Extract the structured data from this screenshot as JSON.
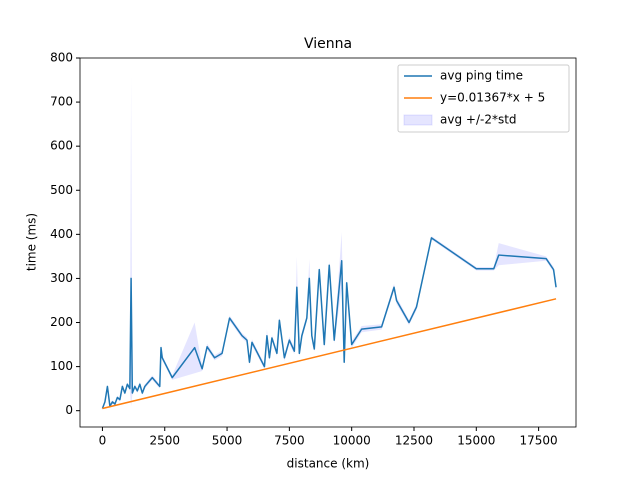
{
  "chart_data": {
    "type": "line",
    "title": "Vienna",
    "x_label": "distance (km)",
    "y_label": "time (ms)",
    "xlim": [
      -900,
      19000
    ],
    "ylim": [
      -37,
      800
    ],
    "xticks": [
      0,
      2500,
      5000,
      7500,
      10000,
      12500,
      15000,
      17500
    ],
    "yticks": [
      0,
      100,
      200,
      300,
      400,
      500,
      600,
      700,
      800
    ],
    "legend": "upper right",
    "series": [
      {
        "name": "avg ping time",
        "color": "#1f77b4",
        "x": [
          0,
          100,
          200,
          300,
          400,
          500,
          600,
          700,
          800,
          900,
          1000,
          1100,
          1150,
          1200,
          1300,
          1400,
          1500,
          1600,
          1700,
          2000,
          2300,
          2350,
          2400,
          2800,
          3700,
          4000,
          4200,
          4500,
          4800,
          5100,
          5600,
          5800,
          5900,
          6000,
          6500,
          6600,
          6700,
          6800,
          7000,
          7100,
          7300,
          7500,
          7700,
          7800,
          7900,
          8000,
          8200,
          8300,
          8400,
          8500,
          8700,
          8900,
          9100,
          9300,
          9600,
          9700,
          9800,
          10000,
          10400,
          11200,
          11700,
          11800,
          12300,
          12600,
          13200,
          15000,
          15700,
          15900,
          17800,
          18100,
          18200
        ],
        "values": [
          5,
          20,
          55,
          10,
          20,
          15,
          30,
          25,
          55,
          40,
          60,
          50,
          300,
          40,
          55,
          45,
          60,
          40,
          55,
          75,
          55,
          143,
          120,
          75,
          143,
          95,
          145,
          120,
          130,
          210,
          170,
          160,
          110,
          155,
          100,
          170,
          120,
          165,
          130,
          205,
          120,
          160,
          135,
          280,
          130,
          170,
          210,
          300,
          170,
          140,
          320,
          150,
          330,
          160,
          340,
          110,
          290,
          150,
          185,
          190,
          280,
          250,
          200,
          235,
          392,
          322,
          322,
          353,
          345,
          320,
          280
        ]
      },
      {
        "name": "y=0.01367*x + 5",
        "color": "#ff7f0e",
        "x": [
          0,
          18200
        ],
        "values": [
          5,
          253.8
        ]
      }
    ],
    "band": {
      "name": "avg +/-2*std",
      "color": "#0000ff",
      "upper": [
        8,
        24,
        58,
        14,
        24,
        18,
        34,
        28,
        60,
        44,
        64,
        54,
        760,
        44,
        60,
        50,
        66,
        44,
        60,
        80,
        60,
        150,
        126,
        80,
        200,
        100,
        152,
        126,
        136,
        216,
        176,
        166,
        116,
        162,
        106,
        185,
        128,
        172,
        136,
        212,
        128,
        168,
        142,
        350,
        136,
        178,
        218,
        345,
        178,
        146,
        328,
        158,
        340,
        168,
        405,
        118,
        298,
        158,
        192,
        196,
        288,
        258,
        206,
        242,
        396,
        326,
        326,
        380,
        350,
        326,
        286
      ],
      "lower": [
        2,
        16,
        50,
        6,
        16,
        12,
        26,
        22,
        50,
        36,
        56,
        46,
        10,
        36,
        50,
        40,
        54,
        36,
        50,
        70,
        50,
        136,
        114,
        70,
        85,
        90,
        138,
        114,
        124,
        204,
        164,
        154,
        104,
        148,
        94,
        155,
        112,
        158,
        124,
        198,
        112,
        152,
        128,
        220,
        124,
        162,
        202,
        260,
        162,
        134,
        300,
        142,
        310,
        152,
        280,
        102,
        282,
        142,
        178,
        184,
        272,
        242,
        194,
        228,
        388,
        318,
        318,
        330,
        340,
        314,
        274
      ]
    }
  }
}
